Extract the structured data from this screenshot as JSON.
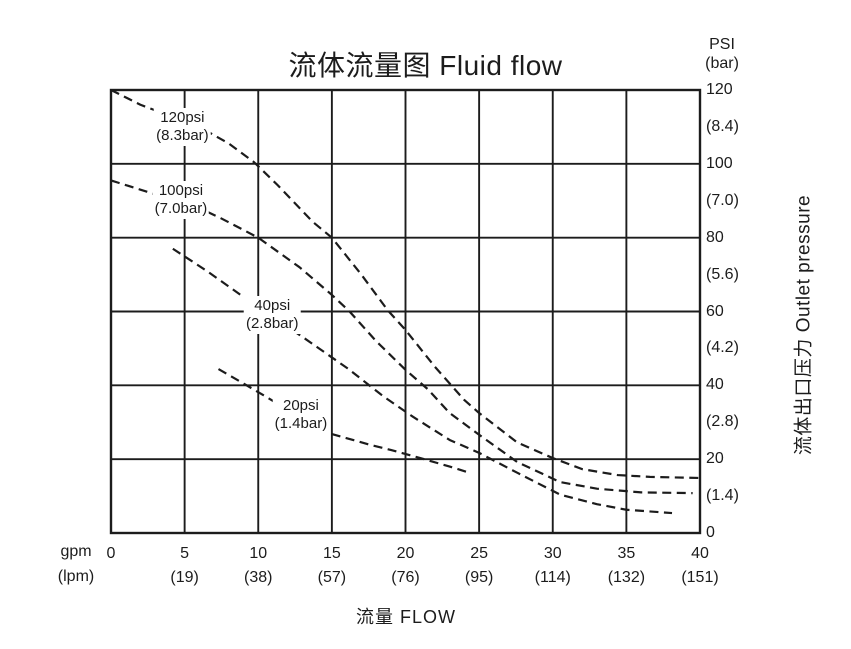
{
  "title": "流体流量图 Fluid flow",
  "right_axis": {
    "unit_psi": "PSI",
    "unit_bar": "(bar)",
    "axis_title": "流体出口压力 Outlet pressure",
    "psi_ticks": [
      "120",
      "100",
      "80",
      "60",
      "40",
      "20",
      "0"
    ],
    "bar_ticks": [
      "(8.4)",
      "(7.0)",
      "(5.6)",
      "(4.2)",
      "(2.8)",
      "(1.4)"
    ]
  },
  "x_axis": {
    "unit_gpm": "gpm",
    "unit_lpm": "(lpm)",
    "axis_title": "流量 FLOW",
    "gpm_ticks": [
      "0",
      "5",
      "10",
      "15",
      "20",
      "25",
      "30",
      "35",
      "40"
    ],
    "lpm_ticks": [
      "",
      "(19)",
      "(38)",
      "(57)",
      "(76)",
      "(95)",
      "(114)",
      "(132)",
      "(151)"
    ]
  },
  "colors": {
    "ink": "#1c1c1c",
    "background": "#ffffff"
  },
  "chart_data": {
    "type": "line",
    "title": "流体流量图 Fluid flow",
    "xlabel": "流量 FLOW (gpm / lpm)",
    "ylabel": "流体出口压力 Outlet pressure (PSI / bar)",
    "xlim": [
      0,
      40
    ],
    "ylim": [
      0,
      120
    ],
    "grid": {
      "on": true,
      "x_step_gpm": 5,
      "y_step_psi": 20
    },
    "line_style": "dashed",
    "legend_position": "labels-on-curves",
    "series": [
      {
        "name": "120psi (8.3bar)",
        "label_line1": "120psi",
        "label_line2": "(8.3bar)",
        "label_anchor": {
          "x": 4.85,
          "y": 110.0
        },
        "points": [
          [
            0,
            120
          ],
          [
            2,
            116
          ],
          [
            4,
            113
          ],
          [
            6,
            110
          ],
          [
            8,
            105.5
          ],
          [
            9.7,
            100.5
          ],
          [
            11.3,
            94.3
          ],
          [
            13.7,
            84.3
          ],
          [
            15,
            80
          ],
          [
            17,
            70
          ],
          [
            18.8,
            60.3
          ],
          [
            20,
            55
          ],
          [
            22,
            45
          ],
          [
            24,
            36
          ],
          [
            25,
            32.5
          ],
          [
            27.6,
            24.5
          ],
          [
            30,
            20.3
          ],
          [
            32,
            17.3
          ],
          [
            34.4,
            15.7
          ],
          [
            36.6,
            15.2
          ],
          [
            40,
            14.9
          ]
        ]
      },
      {
        "name": "100psi (7.0bar)",
        "label_line1": "100psi",
        "label_line2": "(7.0bar)",
        "label_anchor": {
          "x": 4.75,
          "y": 90.3
        },
        "points": [
          [
            0,
            95.5
          ],
          [
            2,
            93
          ],
          [
            4,
            90.5
          ],
          [
            6,
            88
          ],
          [
            7.4,
            85.4
          ],
          [
            10,
            80
          ],
          [
            12.8,
            72
          ],
          [
            15,
            64.5
          ],
          [
            16.2,
            60
          ],
          [
            18,
            52
          ],
          [
            20,
            44.2
          ],
          [
            21.5,
            39
          ],
          [
            23,
            32.5
          ],
          [
            25,
            26.6
          ],
          [
            27.6,
            19.2
          ],
          [
            30.5,
            13.8
          ],
          [
            33,
            12
          ],
          [
            36,
            11
          ],
          [
            39.5,
            10.8
          ]
        ]
      },
      {
        "name": "40psi (2.8bar)",
        "label_line1": "40psi",
        "label_line2": "(2.8bar)",
        "label_anchor": {
          "x": 10.95,
          "y": 59.1
        },
        "points": [
          [
            4.2,
            77
          ],
          [
            6.5,
            71
          ],
          [
            8.8,
            64.5
          ],
          [
            11,
            58.5
          ],
          [
            13.3,
            52.3
          ],
          [
            16.1,
            44.5
          ],
          [
            18.5,
            37
          ],
          [
            20.5,
            31.5
          ],
          [
            23,
            25.2
          ],
          [
            25,
            21.7
          ],
          [
            27.6,
            16.3
          ],
          [
            30.5,
            10.4
          ],
          [
            33,
            7.8
          ],
          [
            35,
            6.3
          ],
          [
            38.1,
            5.4
          ]
        ]
      },
      {
        "name": "20psi (1.4bar)",
        "label_line1": "20psi",
        "label_line2": "(1.4bar)",
        "label_anchor": {
          "x": 12.9,
          "y": 31.9
        },
        "points": [
          [
            7.3,
            44.4
          ],
          [
            9,
            40.5
          ],
          [
            10.7,
            36.5
          ],
          [
            12.8,
            31.5
          ],
          [
            15,
            26.8
          ],
          [
            17.5,
            24
          ],
          [
            19,
            22.5
          ],
          [
            21,
            20.3
          ],
          [
            23,
            18
          ],
          [
            24.2,
            16.5
          ]
        ]
      }
    ]
  }
}
